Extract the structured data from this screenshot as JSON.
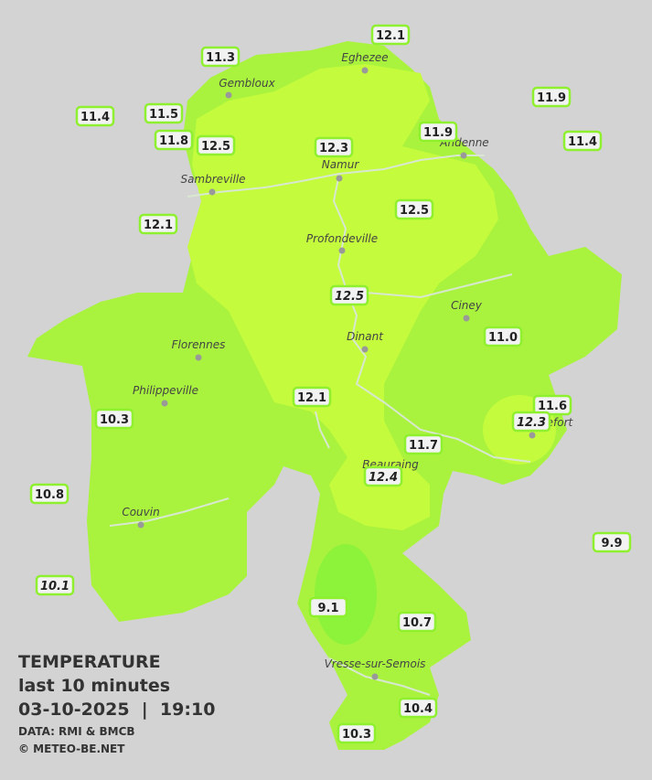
{
  "header": {
    "title": "TEMPERATURE",
    "subtitle": "last 10 minutes",
    "datetime": "03-10-2025  |  19:10",
    "source": "DATA: RMI & BMCB",
    "copyright": "© METEO-BE.NET"
  },
  "cities": [
    "Eghezee",
    "Gembloux",
    "Andenne",
    "Namur",
    "Sambreville",
    "Profondeville",
    "Ciney",
    "Dinant",
    "Florennes",
    "Philippeville",
    "Rochefort",
    "Beauraing",
    "Couvin",
    "Vresse-sur-Semois"
  ],
  "stations": [
    "11.3",
    "12.1",
    "11.9",
    "11.4",
    "11.5",
    "11.8",
    "12.5",
    "12.3",
    "11.9",
    "11.4",
    "12.1",
    "12.5",
    "12.5",
    "11.0",
    "12.1",
    "10.3",
    "11.6",
    "12.3",
    "11.7",
    "12.4",
    "10.8",
    "9.9",
    "10.1",
    "9.1",
    "10.7",
    "10.4",
    "10.3"
  ]
}
